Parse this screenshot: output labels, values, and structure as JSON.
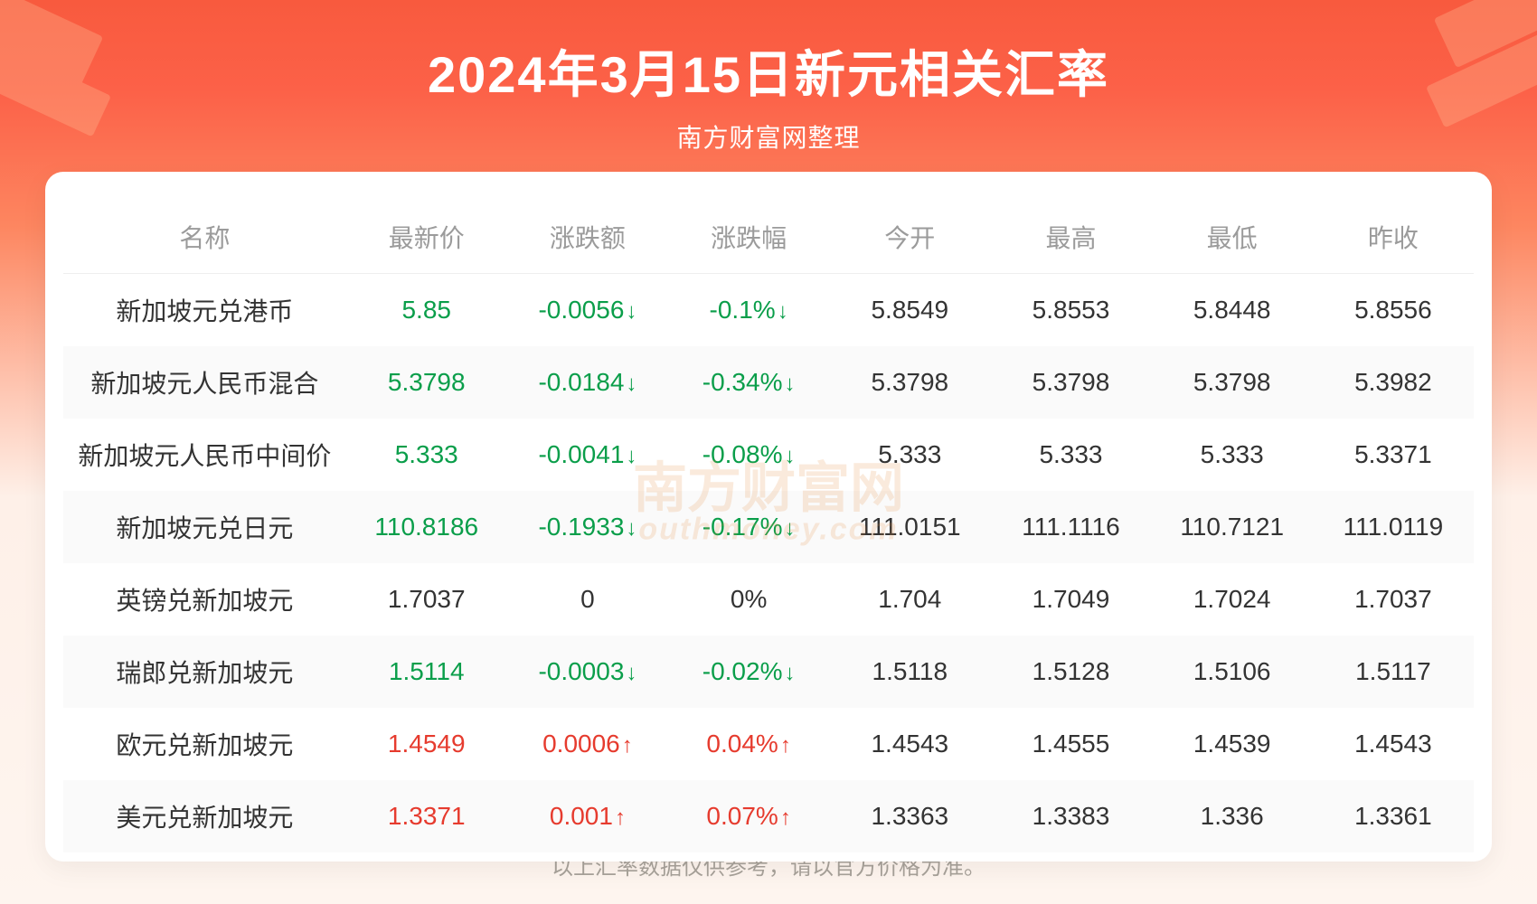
{
  "header": {
    "title": "2024年3月15日新元相关汇率",
    "subtitle": "南方财富网整理",
    "title_color": "#ffffff",
    "title_fontsize": 56,
    "subtitle_fontsize": 28
  },
  "background": {
    "gradient_top": "#f85a3e",
    "gradient_mid": "#fd8660",
    "gradient_bottom": "#fef5ef"
  },
  "card": {
    "background_color": "#ffffff",
    "border_radius": 20
  },
  "table": {
    "header_color": "#9b9b9b",
    "text_color": "#333333",
    "down_color": "#0a9e4a",
    "up_color": "#e63b2e",
    "row_alt_bg": "#fafafa",
    "fontsize": 28,
    "columns": [
      "名称",
      "最新价",
      "涨跌额",
      "涨跌幅",
      "今开",
      "最高",
      "最低",
      "昨收"
    ],
    "rows": [
      {
        "name": "新加坡元兑港币",
        "latest": "5.85",
        "change": "-0.0056",
        "pct": "-0.1%",
        "dir": "down",
        "open": "5.8549",
        "high": "5.8553",
        "low": "5.8448",
        "prev": "5.8556"
      },
      {
        "name": "新加坡元人民币混合",
        "latest": "5.3798",
        "change": "-0.0184",
        "pct": "-0.34%",
        "dir": "down",
        "open": "5.3798",
        "high": "5.3798",
        "low": "5.3798",
        "prev": "5.3982"
      },
      {
        "name": "新加坡元人民币中间价",
        "latest": "5.333",
        "change": "-0.0041",
        "pct": "-0.08%",
        "dir": "down",
        "open": "5.333",
        "high": "5.333",
        "low": "5.333",
        "prev": "5.3371"
      },
      {
        "name": "新加坡元兑日元",
        "latest": "110.8186",
        "change": "-0.1933",
        "pct": "-0.17%",
        "dir": "down",
        "open": "111.0151",
        "high": "111.1116",
        "low": "110.7121",
        "prev": "111.0119"
      },
      {
        "name": "英镑兑新加坡元",
        "latest": "1.7037",
        "change": "0",
        "pct": "0%",
        "dir": "flat",
        "open": "1.704",
        "high": "1.7049",
        "low": "1.7024",
        "prev": "1.7037"
      },
      {
        "name": "瑞郎兑新加坡元",
        "latest": "1.5114",
        "change": "-0.0003",
        "pct": "-0.02%",
        "dir": "down",
        "open": "1.5118",
        "high": "1.5128",
        "low": "1.5106",
        "prev": "1.5117"
      },
      {
        "name": "欧元兑新加坡元",
        "latest": "1.4549",
        "change": "0.0006",
        "pct": "0.04%",
        "dir": "up",
        "open": "1.4543",
        "high": "1.4555",
        "low": "1.4539",
        "prev": "1.4543"
      },
      {
        "name": "美元兑新加坡元",
        "latest": "1.3371",
        "change": "0.001",
        "pct": "0.07%",
        "dir": "up",
        "open": "1.3363",
        "high": "1.3383",
        "low": "1.336",
        "prev": "1.3361"
      }
    ]
  },
  "watermark": {
    "line1": "南方财富网",
    "line2": "outhmoney.com",
    "color": "rgba(230,140,60,0.18)"
  },
  "footer": {
    "text": "以上汇率数据仅供参考，请以官方价格为准。",
    "color": "#a8a29a",
    "fontsize": 24
  },
  "arrows": {
    "up": "↑",
    "down": "↓"
  }
}
